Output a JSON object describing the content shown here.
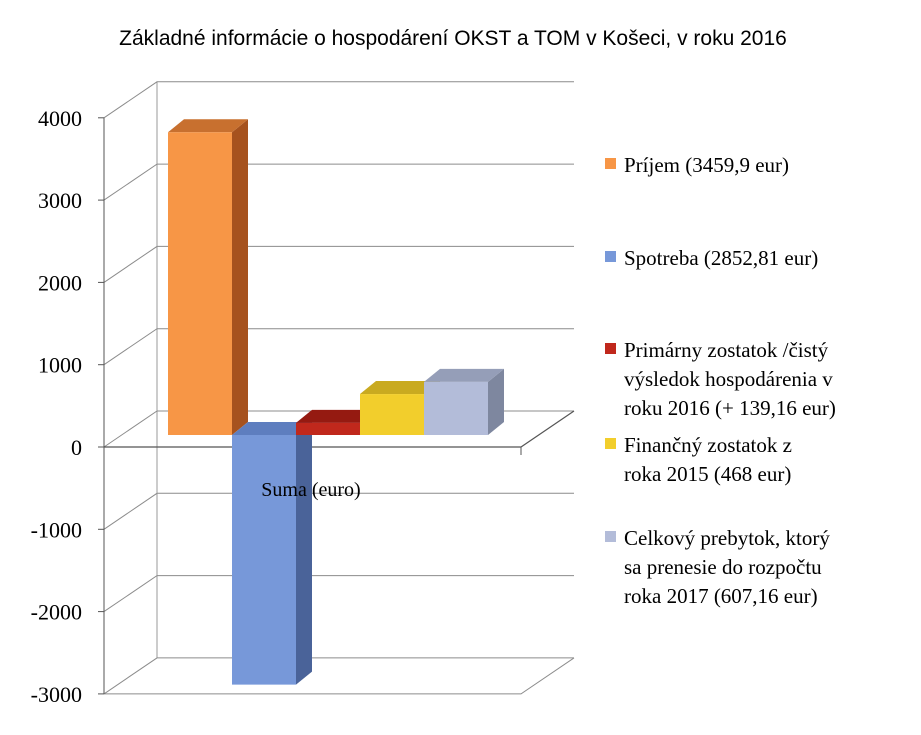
{
  "chart_data": {
    "type": "bar",
    "title": "Základné informácie o hospodárení  OKST a TOM v Košeci, v roku 2016",
    "categories": [
      "Suma (euro)"
    ],
    "ylim": [
      -3000,
      4000
    ],
    "yticks": [
      "4000",
      "3000",
      "2000",
      "1000",
      "0",
      "-1000",
      "-2000",
      "-3000"
    ],
    "grid": true,
    "legend_position": "right",
    "style": "3d-clustered-column",
    "series": [
      {
        "name": "Príjem (3459,9 eur)",
        "value": 3459.9,
        "color": "#F79646",
        "side": "#A6521E",
        "top": "#C8702F",
        "legend_lines": [
          "Príjem (3459,9 eur)"
        ]
      },
      {
        "name": "Spotreba (2852,81 eur)",
        "value": -2852.81,
        "color": "#7798D9",
        "side": "#4A6399",
        "top": "#5E7EBF",
        "legend_lines": [
          "Spotreba (2852,81 eur)"
        ]
      },
      {
        "name": "Primárny zostatok /čistý výsledok hospodárenia v roku 2016 (+ 139,16 eur)",
        "value": 139.16,
        "color": "#C0281C",
        "side": "#7A140D",
        "top": "#951A11",
        "legend_lines": [
          "Primárny zostatok /čistý",
          "výsledok hospodárenia v",
          "roku 2016 (+ 139,16 eur)"
        ]
      },
      {
        "name": "Finančný zostatok z roka 2015 (468 eur)",
        "value": 468,
        "color": "#F2CE2C",
        "side": "#A98C10",
        "top": "#C9AA20",
        "legend_lines": [
          "Finančný zostatok z",
          "roka 2015 (468 eur)"
        ]
      },
      {
        "name": " Celkový prebytok, ktorý sa prenesie do rozpočtu roka 2017 (607,16 eur)",
        "value": 607.16,
        "color": "#B3BCD9",
        "side": "#7E879F",
        "top": "#959EB8",
        "legend_lines": [
          " Celkový prebytok, ktorý",
          "sa prenesie do rozpočtu",
          "roka 2017 (607,16 eur)"
        ]
      }
    ]
  }
}
